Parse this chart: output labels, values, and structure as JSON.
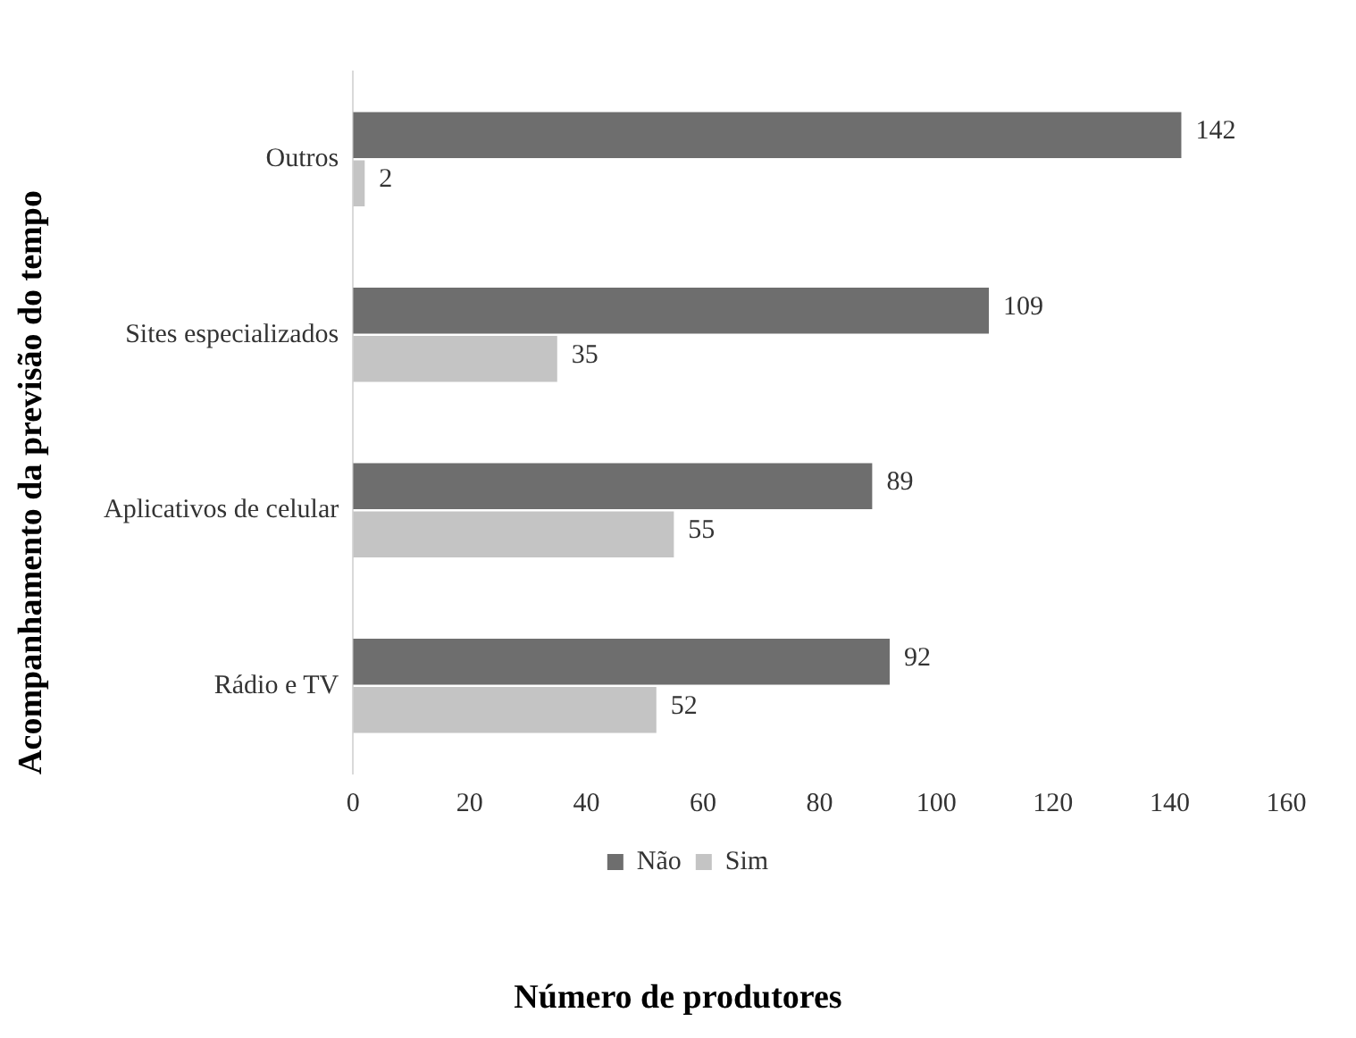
{
  "chart_data": {
    "type": "bar",
    "orientation": "horizontal",
    "xlabel": "Número de produtores",
    "ylabel": "Acompanhamento da previsão do tempo",
    "categories": [
      "Outros",
      "Sites especializados",
      "Aplicativos de celular",
      "Rádio e TV"
    ],
    "series": [
      {
        "name": "Não",
        "color": "#6e6e6e",
        "values": [
          142,
          109,
          89,
          92
        ]
      },
      {
        "name": "Sim",
        "color": "#c4c4c4",
        "values": [
          2,
          35,
          55,
          52
        ]
      }
    ],
    "xlim": [
      0,
      160
    ],
    "xticks": [
      0,
      20,
      40,
      60,
      80,
      100,
      120,
      140,
      160
    ],
    "grid": false,
    "legend": "bottom",
    "data_labels": true
  }
}
